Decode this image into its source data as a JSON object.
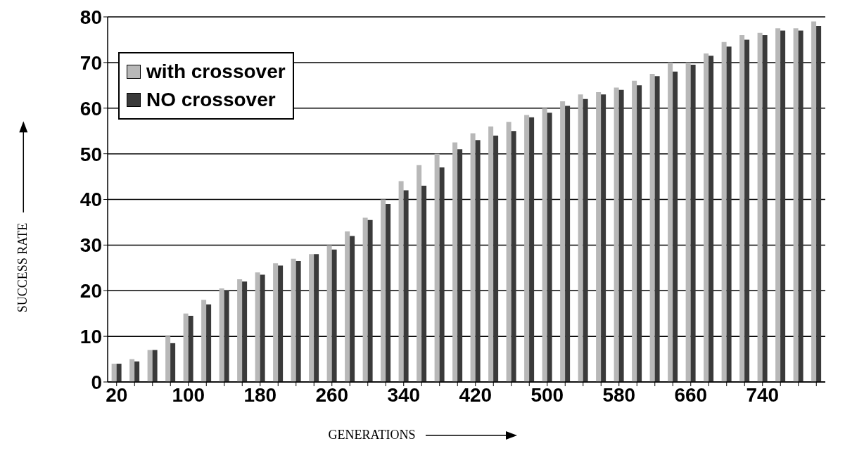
{
  "chart_data": {
    "type": "bar",
    "xlabel": "GENERATIONS",
    "ylabel": "SUCCESS RATE",
    "categories": [
      "20",
      null,
      null,
      null,
      "100",
      null,
      null,
      null,
      "180",
      null,
      null,
      null,
      "260",
      null,
      null,
      null,
      "340",
      null,
      null,
      null,
      "420",
      null,
      null,
      null,
      "500",
      null,
      null,
      null,
      "580",
      null,
      null,
      null,
      "660",
      null,
      null,
      null,
      "740",
      null,
      null,
      null
    ],
    "series": [
      {
        "name": "with crossover",
        "color": "#b8b8b8",
        "values": [
          4,
          5,
          7,
          10,
          15,
          18,
          20.5,
          22.5,
          24,
          26,
          27,
          28,
          30,
          33,
          36,
          40,
          44,
          47.5,
          50,
          52.5,
          54.5,
          56,
          57,
          58.5,
          60,
          61.5,
          63,
          63.5,
          64.5,
          66,
          67.5,
          70,
          70,
          72,
          74.5,
          76,
          76.5,
          77.5,
          77.5,
          79
        ]
      },
      {
        "name": "NO crossover",
        "color": "#3a3a3a",
        "values": [
          4,
          4.5,
          7,
          8.5,
          14.5,
          17,
          20,
          22,
          23.5,
          25.5,
          26.5,
          28,
          29,
          32,
          35.5,
          39,
          42,
          43,
          47,
          51,
          53,
          54,
          55,
          58,
          59,
          60.5,
          62,
          63,
          64,
          65,
          67,
          68,
          69.5,
          71.5,
          73.5,
          75,
          76,
          77,
          77,
          78
        ]
      }
    ],
    "ylim": [
      0,
      80
    ],
    "yticks": [
      0,
      10,
      20,
      30,
      40,
      50,
      60,
      70,
      80
    ],
    "grid": "y",
    "legend": "top left"
  }
}
